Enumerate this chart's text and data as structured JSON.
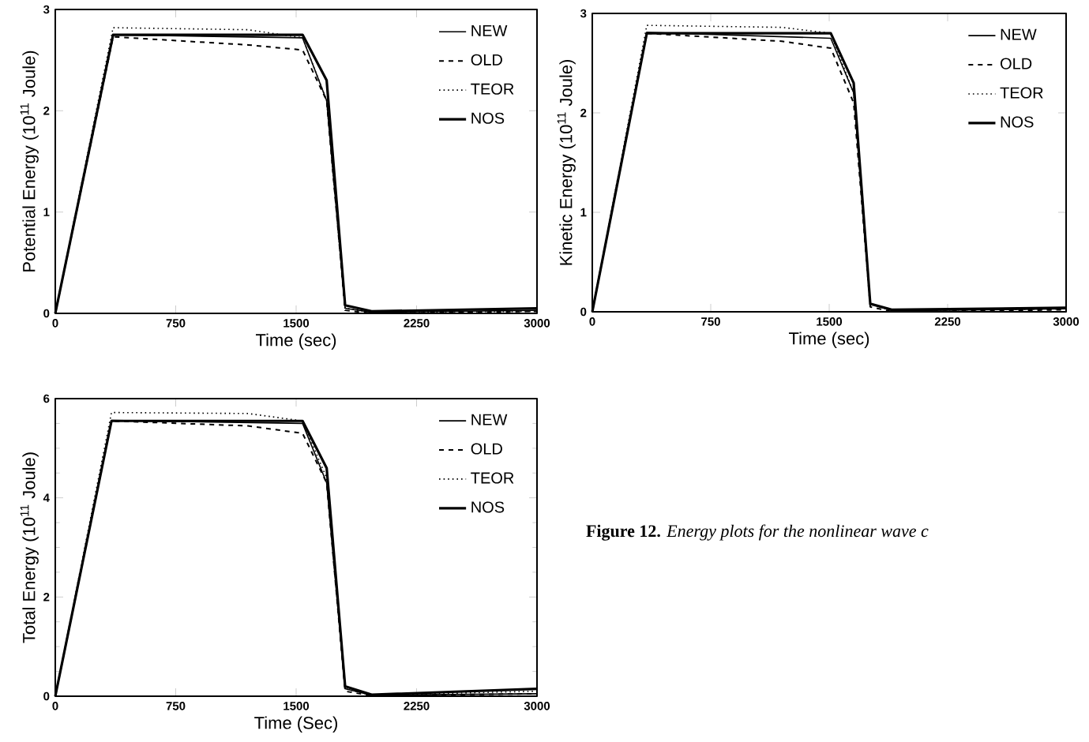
{
  "chart_data": [
    {
      "type": "line",
      "xlabel": "Time (sec)",
      "ylabel": "Potential Energy (10$^{11}$ Joule)",
      "xlim": [
        0,
        3000
      ],
      "ylim": [
        0,
        3
      ],
      "xticks": [
        0,
        750,
        1500,
        2250,
        3000
      ],
      "yticks": [
        0,
        1,
        2,
        3
      ],
      "legend": "top right",
      "series": [
        {
          "name": "NEW",
          "color": "#000000",
          "line_style": "solid",
          "x": [
            0,
            360,
            1540,
            1690,
            1805,
            1970,
            3000
          ],
          "values": [
            0,
            2.75,
            2.72,
            2.1,
            0.05,
            0.01,
            0.03
          ]
        },
        {
          "name": "OLD",
          "color": "#000000",
          "line_style": "dashed",
          "x": [
            0,
            360,
            1200,
            1540,
            1690,
            1805,
            1970,
            3000
          ],
          "values": [
            0,
            2.73,
            2.65,
            2.6,
            2.1,
            0.03,
            0,
            0.02
          ]
        },
        {
          "name": "TEOR",
          "color": "#000000",
          "line_style": "dotted",
          "x": [
            0,
            360,
            1200,
            1540,
            1690,
            1805,
            1970,
            3000
          ],
          "values": [
            0,
            2.82,
            2.8,
            2.72,
            2.1,
            0.05,
            0.01,
            0.02
          ]
        },
        {
          "name": "NOS",
          "color": "#000000",
          "line_style": "solid",
          "x": [
            0,
            360,
            1540,
            1690,
            1805,
            1970,
            3000
          ],
          "values": [
            0,
            2.75,
            2.75,
            2.3,
            0.08,
            0.02,
            0.05
          ]
        }
      ]
    },
    {
      "type": "line",
      "xlabel": "Time (sec)",
      "ylabel": "Kinetic Energy (10$^{11}$ Joule)",
      "xlim": [
        0,
        3000
      ],
      "ylim": [
        0,
        3
      ],
      "xticks": [
        0,
        750,
        1500,
        2250,
        3000
      ],
      "yticks": [
        0,
        1,
        2,
        3
      ],
      "legend": "top right",
      "series": [
        {
          "name": "NEW",
          "color": "#000000",
          "line_style": "solid",
          "x": [
            0,
            345,
            1510,
            1655,
            1760,
            1900,
            3000
          ],
          "values": [
            0,
            2.81,
            2.75,
            2.2,
            0.08,
            0.01,
            0.03
          ]
        },
        {
          "name": "OLD",
          "color": "#000000",
          "line_style": "dashed",
          "x": [
            0,
            345,
            1200,
            1510,
            1655,
            1760,
            1900,
            3000
          ],
          "values": [
            0,
            2.8,
            2.72,
            2.65,
            2.1,
            0.05,
            0,
            0.02
          ]
        },
        {
          "name": "TEOR",
          "color": "#000000",
          "line_style": "dotted",
          "x": [
            0,
            345,
            1200,
            1510,
            1655,
            1760,
            1900,
            3000
          ],
          "values": [
            0,
            2.88,
            2.86,
            2.8,
            2.2,
            0.08,
            0.01,
            0.03
          ]
        },
        {
          "name": "NOS",
          "color": "#000000",
          "line_style": "solid",
          "x": [
            0,
            345,
            1510,
            1655,
            1760,
            1900,
            3000
          ],
          "values": [
            0,
            2.8,
            2.8,
            2.3,
            0.08,
            0.02,
            0.04
          ]
        }
      ]
    },
    {
      "type": "line",
      "xlabel": "Time (Sec)",
      "ylabel": "Total Energy (10$^{11}$ Joule)",
      "xlim": [
        0,
        3000
      ],
      "ylim": [
        0,
        6
      ],
      "xticks": [
        0,
        750,
        1500,
        2250,
        3000
      ],
      "yticks": [
        0,
        2,
        4,
        6
      ],
      "legend": "top right",
      "annotations": [
        "**Figure 12.** *Energy plots for the nonlinear wave c*"
      ],
      "series": [
        {
          "name": "NEW",
          "color": "#000000",
          "line_style": "solid",
          "x": [
            0,
            350,
            1540,
            1690,
            1805,
            1970,
            3000
          ],
          "values": [
            0,
            5.56,
            5.5,
            4.3,
            0.15,
            0.02,
            0.05
          ]
        },
        {
          "name": "OLD",
          "color": "#000000",
          "line_style": "dashed",
          "x": [
            0,
            350,
            1200,
            1540,
            1690,
            1805,
            1970,
            3000
          ],
          "values": [
            0,
            5.55,
            5.45,
            5.3,
            4.3,
            0.1,
            0.01,
            0.05
          ]
        },
        {
          "name": "TEOR",
          "color": "#000000",
          "line_style": "dotted",
          "x": [
            0,
            350,
            1200,
            1540,
            1690,
            1805,
            1970,
            3000
          ],
          "values": [
            0,
            5.72,
            5.7,
            5.55,
            4.4,
            0.15,
            0.02,
            0.1
          ]
        },
        {
          "name": "NOS",
          "color": "#000000",
          "line_style": "solid",
          "x": [
            0,
            350,
            1540,
            1690,
            1805,
            1970,
            3000
          ],
          "values": [
            0,
            5.55,
            5.55,
            4.6,
            0.2,
            0.03,
            0.15
          ]
        }
      ]
    }
  ]
}
